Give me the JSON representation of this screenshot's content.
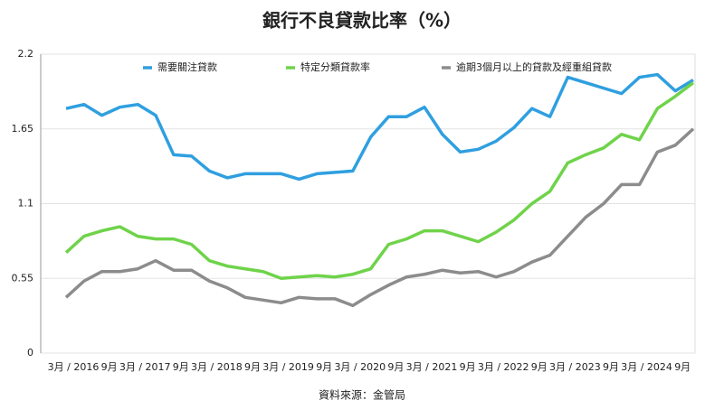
{
  "chart_data": {
    "type": "line",
    "title": "銀行不良貸款比率（%）",
    "source": "資料來源：金管局",
    "categories": [
      "3月 / 2016",
      null,
      "9月",
      null,
      "3月 / 2017",
      null,
      "9月",
      null,
      "3月 / 2018",
      null,
      "9月",
      null,
      "3月 / 2019",
      null,
      "9月",
      null,
      "3月 / 2020",
      null,
      "9月",
      null,
      "3月 / 2021",
      null,
      "9月",
      null,
      "3月 / 2022",
      null,
      "9月",
      null,
      "3月 / 2023",
      null,
      "9月",
      null,
      "3月 / 2024",
      null,
      "9月",
      null
    ],
    "series": [
      {
        "name": "需要關注貸款",
        "color": "#2f9fe0",
        "values": [
          1.8,
          1.83,
          1.75,
          1.81,
          1.83,
          1.75,
          1.46,
          1.45,
          1.34,
          1.29,
          1.32,
          1.32,
          1.32,
          1.28,
          1.32,
          1.33,
          1.34,
          1.59,
          1.74,
          1.74,
          1.81,
          1.61,
          1.48,
          1.5,
          1.56,
          1.66,
          1.8,
          1.74,
          2.03,
          1.99,
          1.95,
          1.91,
          2.03,
          2.05,
          1.93,
          2.01
        ]
      },
      {
        "name": "特定分類貸款率",
        "color": "#6fd34a",
        "values": [
          0.74,
          0.86,
          0.9,
          0.93,
          0.86,
          0.84,
          0.84,
          0.8,
          0.68,
          0.64,
          0.62,
          0.6,
          0.55,
          0.56,
          0.57,
          0.56,
          0.58,
          0.62,
          0.8,
          0.84,
          0.9,
          0.9,
          0.86,
          0.82,
          0.89,
          0.98,
          1.1,
          1.19,
          1.4,
          1.46,
          1.51,
          1.61,
          1.57,
          1.8,
          1.89,
          1.99
        ]
      },
      {
        "name": "逾期3個月以上的貸款及經重組貸款",
        "color": "#8c8c8c",
        "values": [
          0.41,
          0.53,
          0.6,
          0.6,
          0.62,
          0.68,
          0.61,
          0.61,
          0.53,
          0.48,
          0.41,
          0.39,
          0.37,
          0.41,
          0.4,
          0.4,
          0.35,
          0.43,
          0.5,
          0.56,
          0.58,
          0.61,
          0.59,
          0.6,
          0.56,
          0.6,
          0.67,
          0.72,
          0.86,
          1.0,
          1.1,
          1.24,
          1.24,
          1.48,
          1.53,
          1.65
        ]
      }
    ],
    "ylim": [
      0,
      2.2
    ],
    "yticks": [
      0,
      0.55,
      1.1,
      1.65,
      2.2
    ],
    "grid": true
  }
}
